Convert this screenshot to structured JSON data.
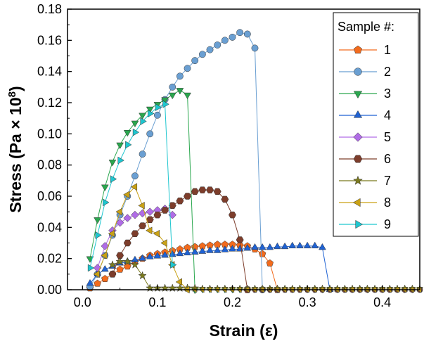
{
  "chart_data": {
    "type": "scatter",
    "title": "",
    "xlabel": "Strain (ε)",
    "ylabel_main": "Stress (Pa × 10",
    "ylabel_sup": "8",
    "ylabel_close": ")",
    "xlim": [
      -0.02,
      0.45
    ],
    "ylim": [
      0,
      0.18
    ],
    "xticks": [
      0.0,
      0.1,
      0.2,
      0.3,
      0.4
    ],
    "xtick_labels": [
      "0.0",
      "0.1",
      "0.2",
      "0.3",
      "0.4"
    ],
    "yticks": [
      0,
      0.02,
      0.04,
      0.06,
      0.08,
      0.1,
      0.12,
      0.14,
      0.16,
      0.18
    ],
    "ytick_labels": [
      "0.00",
      "0.02",
      "0.04",
      "0.06",
      "0.08",
      "0.10",
      "0.12",
      "0.14",
      "0.16",
      "0.18"
    ],
    "legend_title": "Sample #:",
    "legend_position": "top-right",
    "series": [
      {
        "name": "1",
        "color": "#f26b1d",
        "marker": "pentagon",
        "x": [
          0.01,
          0.02,
          0.03,
          0.04,
          0.05,
          0.06,
          0.07,
          0.08,
          0.09,
          0.1,
          0.11,
          0.12,
          0.13,
          0.14,
          0.15,
          0.16,
          0.17,
          0.18,
          0.19,
          0.2,
          0.21,
          0.22,
          0.23,
          0.24,
          0.25,
          0.26
        ],
        "y": [
          0.001,
          0.004,
          0.007,
          0.01,
          0.013,
          0.015,
          0.018,
          0.02,
          0.022,
          0.023,
          0.024,
          0.025,
          0.026,
          0.027,
          0.0275,
          0.028,
          0.0285,
          0.029,
          0.029,
          0.029,
          0.0285,
          0.028,
          0.026,
          0.023,
          0.017,
          0.0
        ]
      },
      {
        "name": "2",
        "color": "#6a9fd2",
        "marker": "circle",
        "x": [
          0.01,
          0.02,
          0.03,
          0.04,
          0.05,
          0.06,
          0.07,
          0.08,
          0.09,
          0.1,
          0.11,
          0.12,
          0.13,
          0.14,
          0.15,
          0.16,
          0.17,
          0.18,
          0.19,
          0.2,
          0.21,
          0.22,
          0.23,
          0.24
        ],
        "y": [
          0.002,
          0.01,
          0.022,
          0.035,
          0.048,
          0.06,
          0.073,
          0.087,
          0.1,
          0.112,
          0.122,
          0.13,
          0.137,
          0.142,
          0.147,
          0.151,
          0.154,
          0.157,
          0.16,
          0.162,
          0.165,
          0.164,
          0.155,
          0.0
        ]
      },
      {
        "name": "3",
        "color": "#2aa74e",
        "marker": "triangle-down",
        "x": [
          0.01,
          0.02,
          0.03,
          0.04,
          0.05,
          0.06,
          0.07,
          0.08,
          0.09,
          0.1,
          0.11,
          0.12,
          0.13,
          0.14,
          0.15
        ],
        "y": [
          0.02,
          0.045,
          0.066,
          0.082,
          0.093,
          0.101,
          0.107,
          0.112,
          0.116,
          0.119,
          0.122,
          0.125,
          0.128,
          0.125,
          0.0
        ]
      },
      {
        "name": "4",
        "color": "#1f62d3",
        "marker": "triangle-up",
        "x": [
          0.01,
          0.02,
          0.03,
          0.04,
          0.05,
          0.06,
          0.07,
          0.08,
          0.09,
          0.1,
          0.11,
          0.12,
          0.13,
          0.14,
          0.15,
          0.16,
          0.17,
          0.18,
          0.19,
          0.2,
          0.21,
          0.22,
          0.23,
          0.24,
          0.25,
          0.26,
          0.27,
          0.28,
          0.29,
          0.3,
          0.31,
          0.32,
          0.33
        ],
        "y": [
          0.004,
          0.01,
          0.013,
          0.015,
          0.017,
          0.018,
          0.019,
          0.02,
          0.021,
          0.0215,
          0.022,
          0.0225,
          0.023,
          0.0235,
          0.024,
          0.0245,
          0.025,
          0.025,
          0.0255,
          0.026,
          0.026,
          0.0265,
          0.027,
          0.027,
          0.027,
          0.0275,
          0.0275,
          0.028,
          0.028,
          0.028,
          0.028,
          0.027,
          0.0
        ]
      },
      {
        "name": "5",
        "color": "#b06ce6",
        "marker": "diamond",
        "x": [
          0.02,
          0.03,
          0.04,
          0.05,
          0.06,
          0.07,
          0.08,
          0.09,
          0.1,
          0.11,
          0.12
        ],
        "y": [
          0.014,
          0.028,
          0.038,
          0.043,
          0.046,
          0.048,
          0.049,
          0.05,
          0.051,
          0.052,
          0.048
        ]
      },
      {
        "name": "6",
        "color": "#7d3d2b",
        "marker": "hexagon",
        "x": [
          0.04,
          0.05,
          0.06,
          0.07,
          0.08,
          0.09,
          0.1,
          0.11,
          0.12,
          0.13,
          0.14,
          0.15,
          0.16,
          0.17,
          0.18,
          0.19,
          0.2,
          0.21,
          0.22
        ],
        "y": [
          0.01,
          0.022,
          0.03,
          0.036,
          0.041,
          0.045,
          0.048,
          0.051,
          0.054,
          0.057,
          0.06,
          0.063,
          0.064,
          0.064,
          0.063,
          0.058,
          0.048,
          0.032,
          0.0
        ]
      },
      {
        "name": "7",
        "color": "#7b7a1e",
        "marker": "star",
        "x": [
          0.04,
          0.05,
          0.06,
          0.07,
          0.08,
          0.09,
          0.1,
          0.11,
          0.12,
          0.13,
          0.14,
          0.15
        ],
        "y": [
          0.016,
          0.018,
          0.018,
          0.016,
          0.009,
          0.001,
          0.001,
          0.001,
          0.001,
          0.001,
          0.001,
          0.001
        ]
      },
      {
        "name": "8",
        "color": "#c9a115",
        "marker": "triangle-left",
        "x": [
          0.02,
          0.03,
          0.04,
          0.05,
          0.06,
          0.07,
          0.08,
          0.09,
          0.1,
          0.11,
          0.12,
          0.13,
          0.14
        ],
        "y": [
          0.01,
          0.022,
          0.036,
          0.05,
          0.061,
          0.066,
          0.054,
          0.038,
          0.036,
          0.03,
          0.016,
          0.005,
          0.0
        ]
      },
      {
        "name": "9",
        "color": "#1ec6cf",
        "marker": "triangle-right",
        "x": [
          0.01,
          0.02,
          0.03,
          0.04,
          0.05,
          0.06,
          0.07,
          0.08,
          0.09,
          0.1,
          0.11,
          0.12
        ],
        "y": [
          0.014,
          0.035,
          0.056,
          0.071,
          0.083,
          0.093,
          0.101,
          0.108,
          0.113,
          0.117,
          0.119,
          0.016
        ]
      }
    ]
  }
}
